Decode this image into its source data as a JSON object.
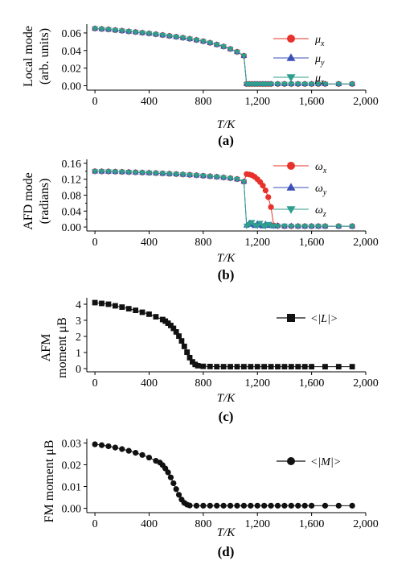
{
  "colors": {
    "red": "#e8312a",
    "blue": "#3a4fb8",
    "teal": "#2f9e8e",
    "black": "#111111"
  },
  "chart_data": [
    {
      "type": "scatter",
      "panel_label": "(a)",
      "ylabel_lines": [
        "Local mode",
        "(arb. units)"
      ],
      "xlabel": "T/K",
      "xlim": [
        -60,
        2000
      ],
      "ylim": [
        -0.005,
        0.07
      ],
      "xticks": [
        0,
        400,
        800,
        1200,
        1600,
        2000
      ],
      "xtick_labels": [
        "0",
        "400",
        "800",
        "1,200",
        "1,600",
        "2,000"
      ],
      "yticks": [
        0.0,
        0.02,
        0.04,
        0.06
      ],
      "ytick_labels": [
        "0.00",
        "0.02",
        "0.04",
        "0.06"
      ],
      "legend_position": "right",
      "series": [
        {
          "name": "μx",
          "marker": "circle",
          "color": "red",
          "x": [
            0,
            50,
            100,
            150,
            200,
            250,
            300,
            350,
            400,
            450,
            500,
            550,
            600,
            650,
            700,
            750,
            800,
            850,
            900,
            950,
            1000,
            1050,
            1100,
            1120,
            1140,
            1160,
            1180,
            1200,
            1220,
            1240,
            1260,
            1280,
            1300,
            1350,
            1400,
            1450,
            1500,
            1550,
            1600,
            1650,
            1700,
            1800,
            1900
          ],
          "y": [
            0.065,
            0.0645,
            0.064,
            0.0632,
            0.0625,
            0.0617,
            0.061,
            0.0602,
            0.0594,
            0.0585,
            0.0576,
            0.0566,
            0.0556,
            0.0545,
            0.0533,
            0.052,
            0.0505,
            0.0488,
            0.0468,
            0.0445,
            0.0418,
            0.0385,
            0.034,
            0.002,
            0.002,
            0.002,
            0.002,
            0.002,
            0.002,
            0.002,
            0.002,
            0.002,
            0.002,
            0.002,
            0.002,
            0.002,
            0.002,
            0.002,
            0.002,
            0.002,
            0.002,
            0.002,
            0.002
          ]
        },
        {
          "name": "μy",
          "marker": "triangle-up",
          "color": "blue",
          "x": [
            0,
            50,
            100,
            150,
            200,
            250,
            300,
            350,
            400,
            450,
            500,
            550,
            600,
            650,
            700,
            750,
            800,
            850,
            900,
            950,
            1000,
            1050,
            1100,
            1120,
            1140,
            1160,
            1180,
            1200,
            1220,
            1240,
            1260,
            1280,
            1300,
            1350,
            1400,
            1450,
            1500,
            1550,
            1600,
            1650,
            1700,
            1800,
            1900
          ],
          "y": [
            0.065,
            0.0645,
            0.064,
            0.0632,
            0.0625,
            0.0617,
            0.061,
            0.0602,
            0.0594,
            0.0585,
            0.0576,
            0.0566,
            0.0556,
            0.0545,
            0.0533,
            0.052,
            0.0505,
            0.0488,
            0.0468,
            0.0445,
            0.0418,
            0.0385,
            0.034,
            0.002,
            0.002,
            0.002,
            0.002,
            0.002,
            0.002,
            0.002,
            0.002,
            0.002,
            0.002,
            0.002,
            0.002,
            0.002,
            0.002,
            0.002,
            0.002,
            0.002,
            0.002,
            0.002,
            0.002
          ]
        },
        {
          "name": "μz",
          "marker": "triangle-down",
          "color": "teal",
          "x": [
            0,
            50,
            100,
            150,
            200,
            250,
            300,
            350,
            400,
            450,
            500,
            550,
            600,
            650,
            700,
            750,
            800,
            850,
            900,
            950,
            1000,
            1050,
            1100,
            1120,
            1140,
            1160,
            1180,
            1200,
            1220,
            1240,
            1260,
            1280,
            1300,
            1350,
            1400,
            1450,
            1500,
            1550,
            1600,
            1650,
            1700,
            1800,
            1900
          ],
          "y": [
            0.065,
            0.0645,
            0.064,
            0.0632,
            0.0625,
            0.0617,
            0.061,
            0.0602,
            0.0594,
            0.0585,
            0.0576,
            0.0566,
            0.0556,
            0.0545,
            0.0533,
            0.052,
            0.0505,
            0.0488,
            0.0468,
            0.0445,
            0.0418,
            0.0385,
            0.034,
            0.002,
            0.002,
            0.002,
            0.002,
            0.002,
            0.002,
            0.002,
            0.002,
            0.002,
            0.002,
            0.002,
            0.002,
            0.002,
            0.002,
            0.002,
            0.002,
            0.002,
            0.002,
            0.002,
            0.002
          ]
        }
      ]
    },
    {
      "type": "scatter",
      "panel_label": "(b)",
      "ylabel_lines": [
        "AFD mode",
        "(radians)"
      ],
      "xlabel": "T/K",
      "xlim": [
        -60,
        2000
      ],
      "ylim": [
        -0.01,
        0.17
      ],
      "xticks": [
        0,
        400,
        800,
        1200,
        1600,
        2000
      ],
      "xtick_labels": [
        "0",
        "400",
        "800",
        "1,200",
        "1,600",
        "2,000"
      ],
      "yticks": [
        0.0,
        0.04,
        0.08,
        0.12,
        0.16
      ],
      "ytick_labels": [
        "0.00",
        "0.04",
        "0.08",
        "0.12",
        "0.16"
      ],
      "y_minor_ticks": [
        0.02,
        0.06,
        0.1,
        0.14
      ],
      "legend_position": "right",
      "series": [
        {
          "name": "ωx",
          "marker": "circle",
          "color": "red",
          "x": [
            0,
            50,
            100,
            150,
            200,
            250,
            300,
            350,
            400,
            450,
            500,
            550,
            600,
            650,
            700,
            750,
            800,
            850,
            900,
            950,
            1000,
            1050,
            1100,
            1120,
            1140,
            1160,
            1180,
            1200,
            1220,
            1240,
            1260,
            1280,
            1300,
            1320,
            1350,
            1400,
            1450,
            1500,
            1550,
            1600,
            1650,
            1700,
            1800,
            1900
          ],
          "y": [
            0.14,
            0.1398,
            0.1395,
            0.139,
            0.1385,
            0.138,
            0.1374,
            0.1368,
            0.1361,
            0.1354,
            0.1346,
            0.1338,
            0.1329,
            0.132,
            0.131,
            0.1299,
            0.1287,
            0.1274,
            0.126,
            0.1244,
            0.1226,
            0.1204,
            0.114,
            0.133,
            0.132,
            0.13,
            0.126,
            0.12,
            0.113,
            0.104,
            0.092,
            0.075,
            0.05,
            0.004,
            0.003,
            0.002,
            0.002,
            0.002,
            0.002,
            0.002,
            0.002,
            0.002,
            0.002,
            0.002
          ]
        },
        {
          "name": "ωy",
          "marker": "triangle-up",
          "color": "blue",
          "x": [
            0,
            50,
            100,
            150,
            200,
            250,
            300,
            350,
            400,
            450,
            500,
            550,
            600,
            650,
            700,
            750,
            800,
            850,
            900,
            950,
            1000,
            1050,
            1100,
            1120,
            1140,
            1160,
            1180,
            1200,
            1220,
            1240,
            1260,
            1280,
            1300,
            1320,
            1350,
            1400,
            1450,
            1500,
            1550,
            1600,
            1650,
            1700,
            1800,
            1900
          ],
          "y": [
            0.14,
            0.1398,
            0.1395,
            0.139,
            0.1385,
            0.138,
            0.1374,
            0.1368,
            0.1361,
            0.1354,
            0.1346,
            0.1338,
            0.1329,
            0.132,
            0.131,
            0.1299,
            0.1287,
            0.1274,
            0.126,
            0.1244,
            0.1226,
            0.1204,
            0.114,
            0.004,
            0.01,
            0.006,
            0.003,
            0.009,
            0.004,
            0.002,
            0.008,
            0.003,
            0.006,
            0.002,
            0.004,
            0.002,
            0.003,
            0.002,
            0.002,
            0.002,
            0.002,
            0.002,
            0.002,
            0.002
          ]
        },
        {
          "name": "ωz",
          "marker": "triangle-down",
          "color": "teal",
          "x": [
            0,
            50,
            100,
            150,
            200,
            250,
            300,
            350,
            400,
            450,
            500,
            550,
            600,
            650,
            700,
            750,
            800,
            850,
            900,
            950,
            1000,
            1050,
            1100,
            1120,
            1140,
            1160,
            1180,
            1200,
            1220,
            1240,
            1260,
            1280,
            1300,
            1320,
            1350,
            1400,
            1450,
            1500,
            1550,
            1600,
            1650,
            1700,
            1800,
            1900
          ],
          "y": [
            0.14,
            0.1398,
            0.1395,
            0.139,
            0.1385,
            0.138,
            0.1374,
            0.1368,
            0.1361,
            0.1354,
            0.1346,
            0.1338,
            0.1329,
            0.132,
            0.131,
            0.1299,
            0.1287,
            0.1274,
            0.126,
            0.1244,
            0.1226,
            0.1204,
            0.114,
            0.003,
            0.007,
            0.012,
            0.005,
            0.003,
            0.01,
            0.004,
            0.002,
            0.007,
            0.004,
            0.003,
            0.002,
            0.003,
            0.002,
            0.002,
            0.002,
            0.002,
            0.002,
            0.002,
            0.002,
            0.002
          ]
        }
      ]
    },
    {
      "type": "line",
      "panel_label": "(c)",
      "ylabel_lines": [
        "AFM",
        "moment μB"
      ],
      "xlabel": "T/K",
      "xlim": [
        -60,
        2000
      ],
      "ylim": [
        -0.2,
        4.4
      ],
      "xticks": [
        0,
        400,
        800,
        1200,
        1600,
        2000
      ],
      "xtick_labels": [
        "0",
        "400",
        "800",
        "1,200",
        "1,600",
        "2,000"
      ],
      "yticks": [
        0,
        1,
        2,
        3,
        4
      ],
      "ytick_labels": [
        "0",
        "1",
        "2",
        "3",
        "4"
      ],
      "legend_position": "top-right",
      "series": [
        {
          "name": "<|L|>",
          "marker": "square",
          "color": "black",
          "x": [
            0,
            50,
            100,
            150,
            200,
            250,
            300,
            350,
            400,
            450,
            500,
            520,
            540,
            560,
            580,
            600,
            620,
            640,
            660,
            680,
            700,
            720,
            740,
            760,
            800,
            850,
            900,
            950,
            1000,
            1050,
            1100,
            1150,
            1200,
            1250,
            1300,
            1350,
            1400,
            1450,
            1500,
            1550,
            1600,
            1700,
            1800,
            1900
          ],
          "y": [
            4.1,
            4.05,
            4.0,
            3.9,
            3.82,
            3.72,
            3.62,
            3.5,
            3.38,
            3.22,
            3.05,
            2.95,
            2.82,
            2.68,
            2.5,
            2.28,
            2.02,
            1.72,
            1.38,
            1.02,
            0.68,
            0.42,
            0.26,
            0.18,
            0.14,
            0.13,
            0.12,
            0.12,
            0.12,
            0.12,
            0.12,
            0.12,
            0.12,
            0.12,
            0.12,
            0.12,
            0.12,
            0.12,
            0.12,
            0.12,
            0.12,
            0.12,
            0.12,
            0.12
          ]
        }
      ]
    },
    {
      "type": "line",
      "panel_label": "(d)",
      "ylabel_lines": [
        "FM moment μB"
      ],
      "xlabel": "T/K",
      "xlim": [
        -60,
        2000
      ],
      "ylim": [
        -0.002,
        0.032
      ],
      "xticks": [
        0,
        400,
        800,
        1200,
        1600,
        2000
      ],
      "xtick_labels": [
        "0",
        "400",
        "800",
        "1,200",
        "1,600",
        "2,000"
      ],
      "yticks": [
        0.0,
        0.01,
        0.02,
        0.03
      ],
      "ytick_labels": [
        "0.00",
        "0.01",
        "0.02",
        "0.03"
      ],
      "legend_position": "top-right",
      "series": [
        {
          "name": "<|M|>",
          "marker": "circle",
          "color": "black",
          "x": [
            0,
            50,
            100,
            150,
            200,
            250,
            300,
            350,
            400,
            450,
            480,
            500,
            520,
            540,
            560,
            580,
            600,
            620,
            640,
            660,
            680,
            700,
            750,
            800,
            850,
            900,
            950,
            1000,
            1050,
            1100,
            1150,
            1200,
            1250,
            1300,
            1350,
            1400,
            1450,
            1500,
            1550,
            1600,
            1700,
            1800,
            1900
          ],
          "y": [
            0.0294,
            0.029,
            0.0285,
            0.0279,
            0.0272,
            0.0264,
            0.0255,
            0.0245,
            0.0233,
            0.0218,
            0.021,
            0.0198,
            0.0183,
            0.0165,
            0.0142,
            0.0115,
            0.0088,
            0.0062,
            0.004,
            0.0025,
            0.0017,
            0.0013,
            0.0012,
            0.0012,
            0.0012,
            0.0012,
            0.0012,
            0.0012,
            0.0012,
            0.0012,
            0.0012,
            0.0012,
            0.0012,
            0.0012,
            0.0012,
            0.0012,
            0.0012,
            0.0012,
            0.0012,
            0.0012,
            0.0012,
            0.0012,
            0.0012
          ]
        }
      ]
    }
  ]
}
